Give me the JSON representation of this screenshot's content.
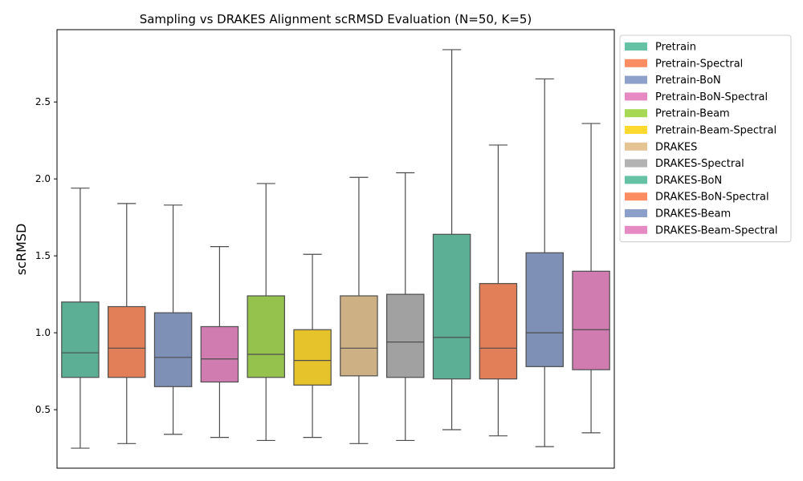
{
  "chart_data": {
    "type": "box",
    "title": "Sampling vs DRAKES Alignment scRMSD Evaluation (N=50, K=5)",
    "xlabel": "",
    "ylabel": "scRMSD",
    "ylim": [
      0.12,
      2.97
    ],
    "yticks": [
      0.5,
      1.0,
      1.5,
      2.0,
      2.5
    ],
    "ytick_labels": [
      "0.5",
      "1.0",
      "1.5",
      "2.0",
      "2.5"
    ],
    "legend_position": "outside-right",
    "series": [
      {
        "name": "Pretrain",
        "color": "#66c2a5",
        "min": 0.25,
        "q1": 0.71,
        "median": 0.87,
        "q3": 1.2,
        "max": 1.94
      },
      {
        "name": "Pretrain-Spectral",
        "color": "#fc8d62",
        "min": 0.28,
        "q1": 0.71,
        "median": 0.9,
        "q3": 1.17,
        "max": 1.84
      },
      {
        "name": "Pretrain-BoN",
        "color": "#8da0cb",
        "min": 0.34,
        "q1": 0.65,
        "median": 0.84,
        "q3": 1.13,
        "max": 1.83
      },
      {
        "name": "Pretrain-BoN-Spectral",
        "color": "#e78ac3",
        "min": 0.32,
        "q1": 0.68,
        "median": 0.83,
        "q3": 1.04,
        "max": 1.56
      },
      {
        "name": "Pretrain-Beam",
        "color": "#a6d854",
        "min": 0.3,
        "q1": 0.71,
        "median": 0.86,
        "q3": 1.24,
        "max": 1.97
      },
      {
        "name": "Pretrain-Beam-Spectral",
        "color": "#ffd92f",
        "min": 0.32,
        "q1": 0.66,
        "median": 0.82,
        "q3": 1.02,
        "max": 1.51
      },
      {
        "name": "DRAKES",
        "color": "#e5c494",
        "min": 0.28,
        "q1": 0.72,
        "median": 0.9,
        "q3": 1.24,
        "max": 2.01
      },
      {
        "name": "DRAKES-Spectral",
        "color": "#b3b3b3",
        "min": 0.3,
        "q1": 0.71,
        "median": 0.94,
        "q3": 1.25,
        "max": 2.04
      },
      {
        "name": "DRAKES-BoN",
        "color": "#66c2a5",
        "min": 0.37,
        "q1": 0.7,
        "median": 0.97,
        "q3": 1.64,
        "max": 2.84
      },
      {
        "name": "DRAKES-BoN-Spectral",
        "color": "#fc8d62",
        "min": 0.33,
        "q1": 0.7,
        "median": 0.9,
        "q3": 1.32,
        "max": 2.22
      },
      {
        "name": "DRAKES-Beam",
        "color": "#8da0cb",
        "min": 0.26,
        "q1": 0.78,
        "median": 1.0,
        "q3": 1.52,
        "max": 2.65
      },
      {
        "name": "DRAKES-Beam-Spectral",
        "color": "#e78ac3",
        "min": 0.35,
        "q1": 0.76,
        "median": 1.02,
        "q3": 1.4,
        "max": 2.36
      }
    ]
  }
}
